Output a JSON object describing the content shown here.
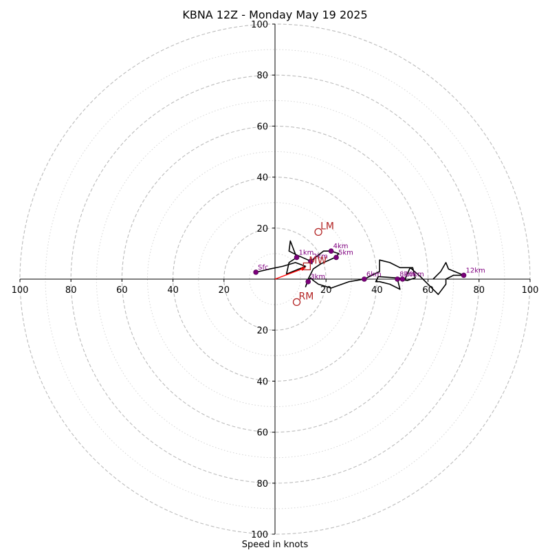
{
  "chart_data": {
    "type": "hodograph",
    "title": "KBNA 12Z - Monday May 19 2025",
    "xlabel": "Speed in knots",
    "units": "knots",
    "range": [
      -100,
      100
    ],
    "major_rings": [
      20,
      40,
      60,
      80,
      100
    ],
    "minor_rings": [
      10,
      30,
      50,
      70,
      90
    ],
    "ticks": [
      "100",
      "80",
      "60",
      "40",
      "20",
      "20",
      "40",
      "60",
      "80",
      "100"
    ],
    "tick_values": [
      -100,
      -80,
      -60,
      -40,
      -20,
      20,
      40,
      60,
      80,
      100
    ],
    "grid": true,
    "trace": [
      [
        -7.5,
        2.7
      ],
      [
        -2,
        4
      ],
      [
        3,
        5
      ],
      [
        8,
        6.5
      ],
      [
        12,
        5
      ],
      [
        4.5,
        2
      ],
      [
        5.5,
        6.5
      ],
      [
        8.5,
        8.5
      ],
      [
        6,
        15
      ],
      [
        5.5,
        11
      ],
      [
        8.5,
        9.5
      ],
      [
        13,
        7.5
      ],
      [
        14.5,
        6
      ],
      [
        14,
        7
      ],
      [
        19,
        11
      ],
      [
        22,
        11
      ],
      [
        25,
        10
      ],
      [
        23.5,
        8.5
      ],
      [
        18,
        6
      ],
      [
        15,
        4
      ],
      [
        14,
        2
      ],
      [
        13,
        0
      ],
      [
        12,
        -3
      ],
      [
        13,
        -0.5
      ],
      [
        14,
        0.5
      ],
      [
        15,
        -0.5
      ],
      [
        17,
        -2
      ],
      [
        22,
        -3.5
      ],
      [
        29,
        -1
      ],
      [
        35,
        0
      ],
      [
        41,
        3
      ],
      [
        41,
        7.5
      ],
      [
        45,
        6.5
      ],
      [
        49,
        4.5
      ],
      [
        54,
        4.5
      ],
      [
        55,
        0.5
      ],
      [
        52,
        -0.5
      ],
      [
        48,
        0
      ],
      [
        49,
        -4
      ],
      [
        45,
        -2
      ],
      [
        41,
        -1
      ],
      [
        39.5,
        -1
      ],
      [
        40.5,
        1
      ],
      [
        47,
        0.5
      ],
      [
        48.5,
        0.5
      ],
      [
        51,
        0
      ],
      [
        53,
        4.5
      ],
      [
        57,
        1
      ],
      [
        59.5,
        -1.5
      ],
      [
        64,
        -6
      ],
      [
        67,
        -2
      ],
      [
        67,
        0
      ],
      [
        70,
        1.5
      ],
      [
        74,
        1.5
      ],
      [
        68,
        4
      ],
      [
        67,
        6.5
      ],
      [
        65,
        3
      ],
      [
        62,
        0
      ]
    ],
    "height_markers": [
      {
        "label": "Sfc",
        "u": -7.5,
        "v": 2.7
      },
      {
        "label": "1km",
        "u": 8.5,
        "v": 8.5
      },
      {
        "label": "2km",
        "u": 14,
        "v": 7
      },
      {
        "label": "3km",
        "u": 13,
        "v": -1
      },
      {
        "label": "4km",
        "u": 22,
        "v": 11
      },
      {
        "label": "5km",
        "u": 24,
        "v": 8.5
      },
      {
        "label": "6km",
        "u": 35,
        "v": 0
      },
      {
        "label": "8km",
        "u": 48,
        "v": 0
      },
      {
        "label": "10km",
        "u": 50,
        "v": 0
      },
      {
        "label": "12km",
        "u": 74,
        "v": 1.5
      }
    ],
    "storm_motions": [
      {
        "label": "LM",
        "u": 17,
        "v": 18.5
      },
      {
        "label": "RM",
        "u": 8.5,
        "v": -9
      },
      {
        "label": "MW",
        "u": 12.5,
        "v": 5
      }
    ],
    "shear_vector": {
      "u0": 0,
      "v0": 0,
      "u1": 12,
      "v1": 4.5
    },
    "colors": {
      "trace": "#000000",
      "markers": "#800080",
      "storm_motion": "#b22222",
      "shear": "#ff0000",
      "rings": "#bbbbbb"
    }
  }
}
